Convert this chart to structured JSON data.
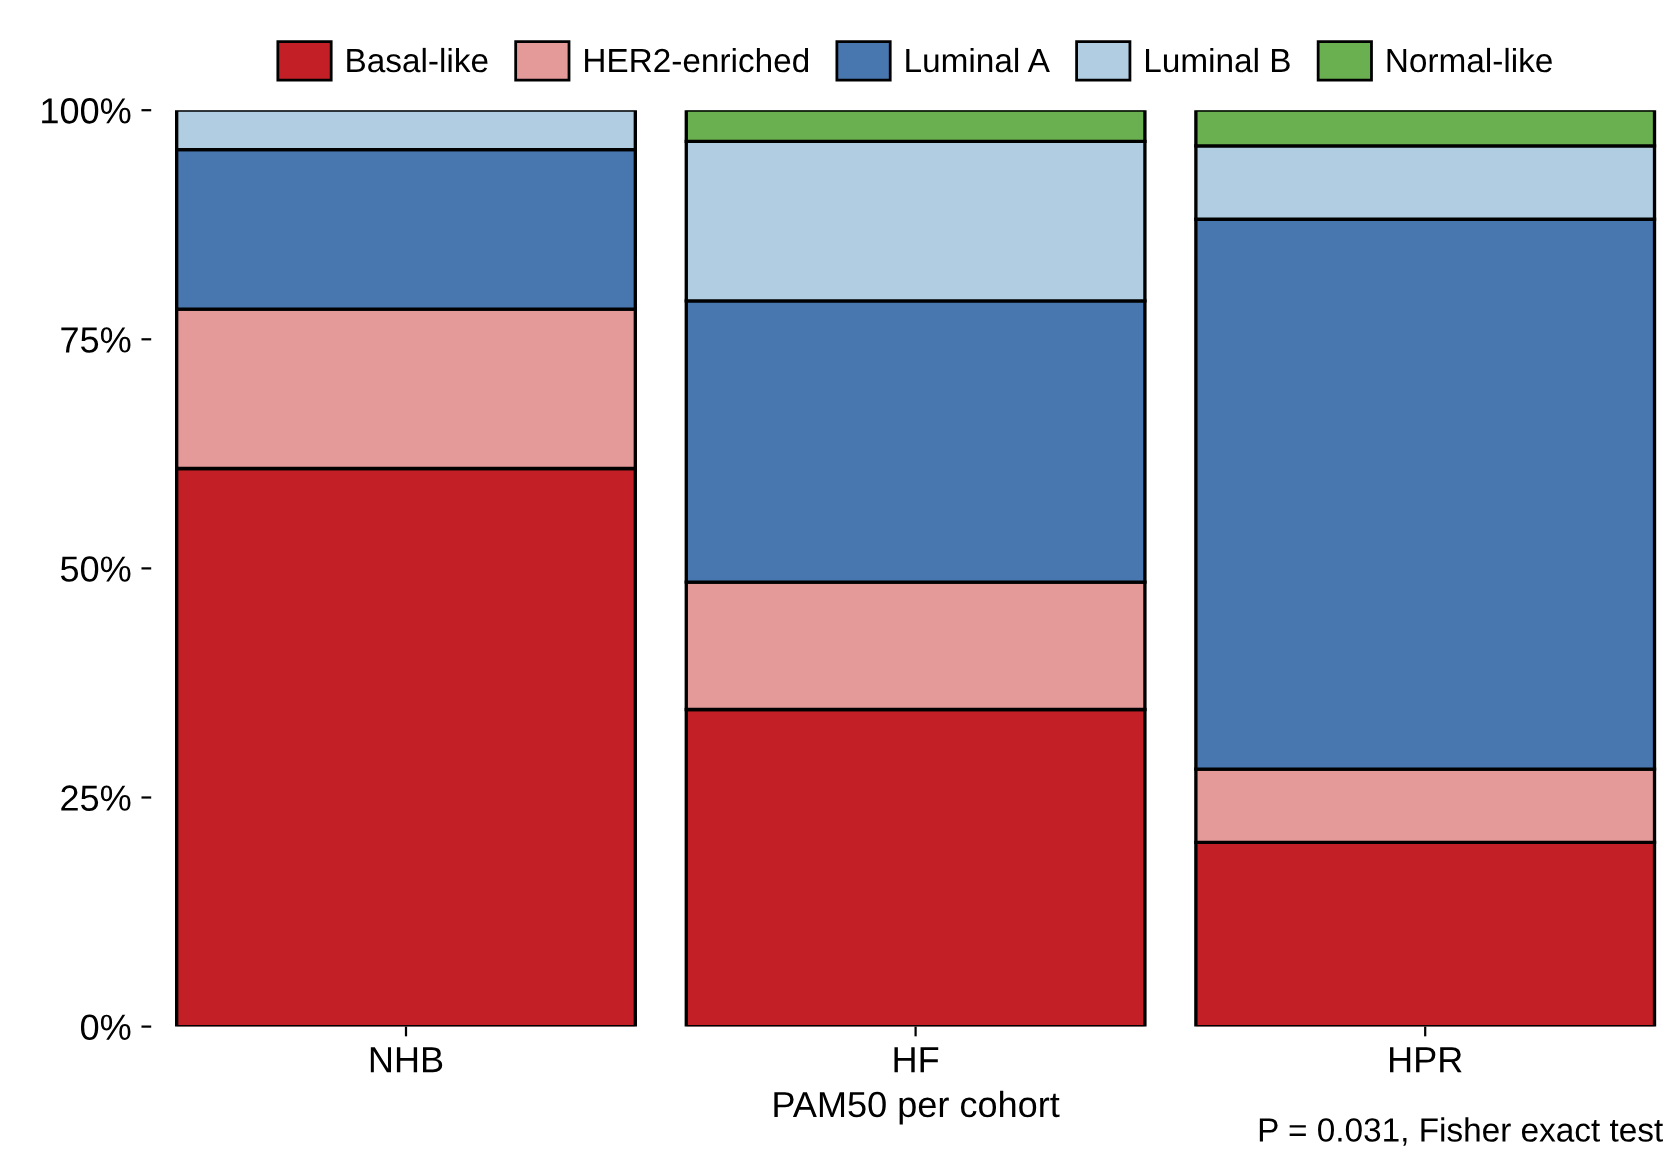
{
  "chart_data": {
    "type": "bar",
    "stacked": true,
    "xlabel": "PAM50 per cohort",
    "categories": [
      "NHB",
      "HF",
      "HPR"
    ],
    "series": [
      {
        "name": "Basal-like",
        "color": "#c22026",
        "values": [
          60.9,
          34.6,
          20.1
        ]
      },
      {
        "name": "HER2-enriched",
        "color": "#e59a9a",
        "values": [
          17.4,
          13.9,
          8.0
        ]
      },
      {
        "name": "Luminal A",
        "color": "#4877b0",
        "values": [
          17.4,
          30.7,
          60.0
        ]
      },
      {
        "name": "Luminal B",
        "color": "#b1cde1",
        "values": [
          4.3,
          17.4,
          8.0
        ]
      },
      {
        "name": "Normal-like",
        "color": "#6aaf50",
        "values": [
          0,
          3.4,
          3.9
        ]
      }
    ],
    "ylim": [
      0,
      100
    ],
    "yticks": [
      {
        "value": 0,
        "label": "0%"
      },
      {
        "value": 25,
        "label": "25%"
      },
      {
        "value": 50,
        "label": "50%"
      },
      {
        "value": 75,
        "label": "75%"
      },
      {
        "value": 100,
        "label": "100%"
      }
    ],
    "legend": "top",
    "grid": false,
    "annotations": [
      "P = 0.031, Fisher exact test"
    ]
  }
}
